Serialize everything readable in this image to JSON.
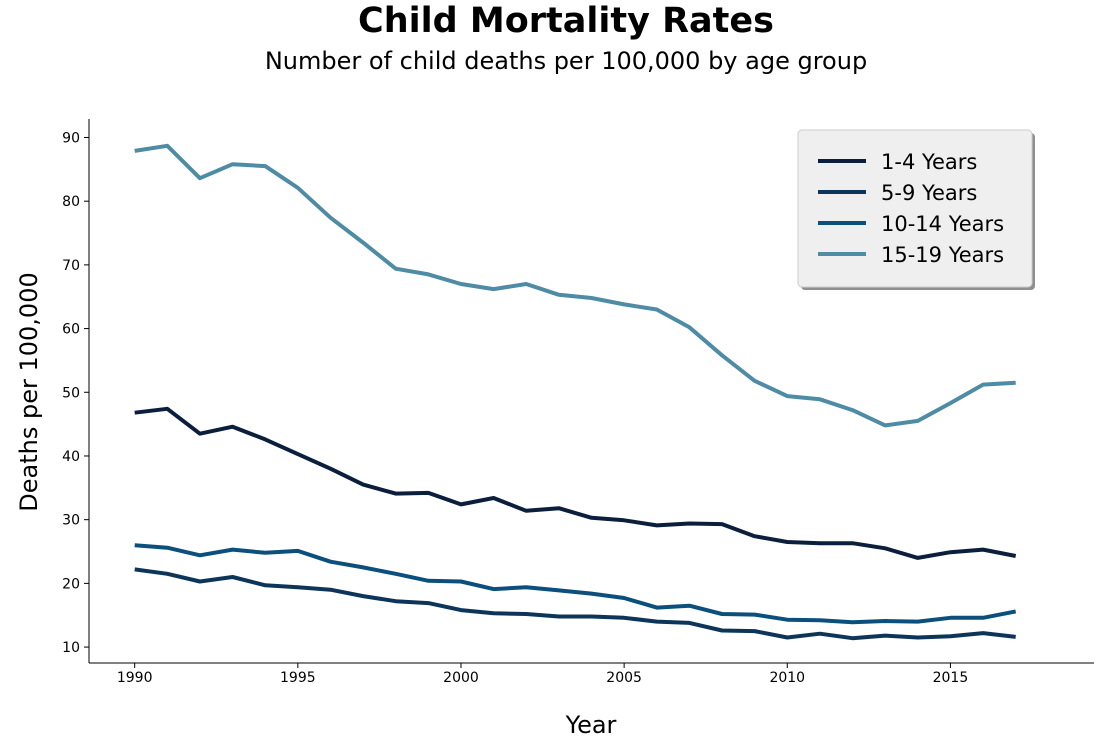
{
  "chart_data": {
    "type": "line",
    "title": "Child Mortality Rates",
    "subtitle": "Number of child deaths per 100,000 by age group",
    "xlabel": "Year",
    "ylabel": "Deaths per 100,000",
    "xlim": [
      1988.6,
      2019.4
    ],
    "ylim": [
      7.5,
      92.9
    ],
    "x_ticks": [
      1990,
      1995,
      2000,
      2005,
      2010,
      2015
    ],
    "y_ticks": [
      10,
      20,
      30,
      40,
      50,
      60,
      70,
      80,
      90
    ],
    "grid": false,
    "legend_position": "top-right",
    "x": [
      1990,
      1991,
      1992,
      1993,
      1994,
      1995,
      1996,
      1997,
      1998,
      1999,
      2000,
      2001,
      2002,
      2003,
      2004,
      2005,
      2006,
      2007,
      2008,
      2009,
      2010,
      2011,
      2012,
      2013,
      2014,
      2015,
      2016,
      2017
    ],
    "series": [
      {
        "name": "1-4 Years",
        "color": "#0b1f3d",
        "values": [
          46.8,
          47.4,
          43.5,
          44.6,
          42.6,
          40.3,
          38.0,
          35.5,
          34.1,
          34.2,
          32.4,
          33.4,
          31.4,
          31.8,
          30.3,
          29.9,
          29.1,
          29.4,
          29.3,
          27.4,
          26.5,
          26.3,
          26.3,
          25.5,
          24.0,
          24.9,
          25.3,
          24.3
        ]
      },
      {
        "name": "5-9 Years",
        "color": "#0d3559",
        "values": [
          22.2,
          21.5,
          20.3,
          21.0,
          19.7,
          19.4,
          19.0,
          18.0,
          17.2,
          16.9,
          15.8,
          15.3,
          15.2,
          14.8,
          14.8,
          14.6,
          14.0,
          13.8,
          12.6,
          12.5,
          11.5,
          12.1,
          11.4,
          11.8,
          11.5,
          11.7,
          12.2,
          11.6
        ]
      },
      {
        "name": "10-14 Years",
        "color": "#0b4f7d",
        "values": [
          26.0,
          25.6,
          24.4,
          25.3,
          24.8,
          25.1,
          23.4,
          22.5,
          21.5,
          20.4,
          20.3,
          19.1,
          19.4,
          18.9,
          18.4,
          17.7,
          16.2,
          16.5,
          15.2,
          15.1,
          14.3,
          14.2,
          13.9,
          14.1,
          14.0,
          14.6,
          14.6,
          15.6
        ]
      },
      {
        "name": "15-19 Years",
        "color": "#4e8ba5",
        "values": [
          87.9,
          88.7,
          83.6,
          85.8,
          85.5,
          82.1,
          77.4,
          73.5,
          69.4,
          68.5,
          67.0,
          66.2,
          67.0,
          65.3,
          64.8,
          63.8,
          63.0,
          60.2,
          55.8,
          51.8,
          49.4,
          48.9,
          47.2,
          44.8,
          45.5,
          48.3,
          51.2,
          51.5
        ]
      }
    ]
  }
}
